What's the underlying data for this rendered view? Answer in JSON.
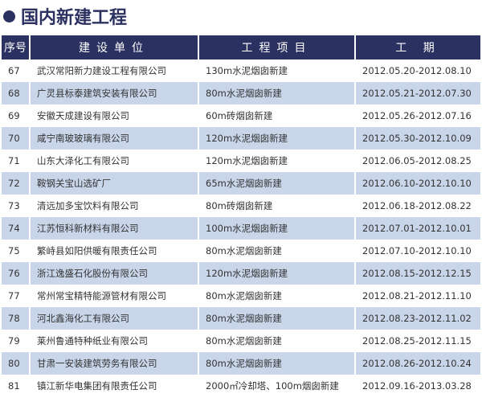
{
  "title": "国内新建工程",
  "colors": {
    "header": "#2b3160",
    "alt_row": "#c9d6ea"
  },
  "headers": [
    "序号",
    "建设单位",
    "工程项目",
    "工 期"
  ],
  "rows": [
    [
      "67",
      "武汉常阳新力建设工程有限公司",
      "130m水泥烟囱新建",
      "2012.05.20-2012.08.10"
    ],
    [
      "68",
      "广灵县标泰建筑安装有限公司",
      "80m水泥烟囱新建",
      "2012.05.21-2012.07.30"
    ],
    [
      "69",
      "安徽天成建设有限公司",
      "60m砖烟囱新建",
      "2012.05.26-2012.07.16"
    ],
    [
      "70",
      "咸宁南玻玻璃有限公司",
      "120m水泥烟囱新建",
      "2012.05.30-2012.10.09"
    ],
    [
      "71",
      "山东大泽化工有限公司",
      "120m水泥烟囱新建",
      "2012.06.05-2012.08.25"
    ],
    [
      "72",
      "鞍钢关宝山选矿厂",
      "65m水泥烟囱新建",
      "2012.06.10-2012.10.10"
    ],
    [
      "73",
      "清远加多宝饮料有限公司",
      "80m砖烟囱新建",
      "2012.06.18-2012.08.22"
    ],
    [
      "74",
      "江苏恒科新材料有限公司",
      "100m水泥烟囱新建",
      "2012.07.01-2012.10.01"
    ],
    [
      "75",
      "繁峙县如阳供暖有限责任公司",
      "80m水泥烟囱新建",
      "2012.07.10-2012.10.10"
    ],
    [
      "76",
      "浙江逸盛石化股份有限公司",
      "120m水泥烟囱新建",
      "2012.08.15-2012.12.15"
    ],
    [
      "77",
      "常州常宝精特能源管材有限公司",
      "80m水泥烟囱新建",
      "2012.08.21-2012.11.10"
    ],
    [
      "78",
      "河北鑫海化工有限公司",
      "80m水泥烟囱新建",
      "2012.08.23-2012.11.02"
    ],
    [
      "79",
      "莱州鲁通特种纸业有限公司",
      "80m水泥烟囱新建",
      "2012.08.25-2012.11.15"
    ],
    [
      "80",
      "甘肃一安装建筑劳务有限公司",
      "80m水泥烟囱新建",
      "2012.08.26-2012.10.24"
    ],
    [
      "81",
      "镇江新华电集团有限责任公司",
      "2000㎡冷却塔、100m烟囱新建",
      "2012.09.16-2013.03.28"
    ]
  ]
}
